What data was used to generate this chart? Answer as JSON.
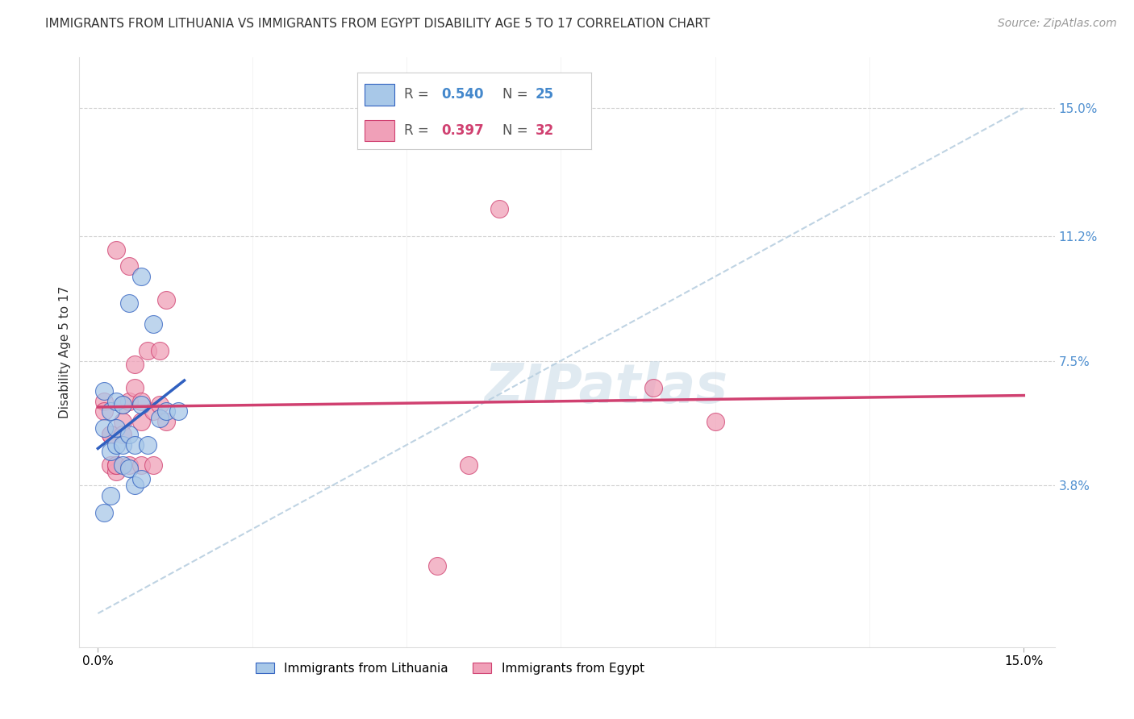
{
  "title": "IMMIGRANTS FROM LITHUANIA VS IMMIGRANTS FROM EGYPT DISABILITY AGE 5 TO 17 CORRELATION CHART",
  "source": "Source: ZipAtlas.com",
  "ylabel": "Disability Age 5 to 17",
  "ytick_positions": [
    0.038,
    0.075,
    0.112,
    0.15
  ],
  "ytick_labels": [
    "3.8%",
    "7.5%",
    "11.2%",
    "15.0%"
  ],
  "xtick_positions": [
    0.0,
    0.15
  ],
  "xtick_labels": [
    "0.0%",
    "15.0%"
  ],
  "xlim": [
    -0.003,
    0.155
  ],
  "ylim": [
    -0.01,
    0.165
  ],
  "legend_r1": "0.540",
  "legend_n1": "25",
  "legend_r2": "0.397",
  "legend_n2": "32",
  "color_lithuania": "#a8c8e8",
  "color_egypt": "#f0a0b8",
  "color_line_lithuania": "#3060c0",
  "color_line_egypt": "#d04070",
  "color_diagonal": "#b8cfe0",
  "background_color": "#ffffff",
  "grid_color": "#c8c8c8",
  "watermark_color": "#ccdde8",
  "lithuania_points": [
    [
      0.001,
      0.055
    ],
    [
      0.001,
      0.066
    ],
    [
      0.002,
      0.035
    ],
    [
      0.002,
      0.048
    ],
    [
      0.002,
      0.06
    ],
    [
      0.003,
      0.063
    ],
    [
      0.003,
      0.05
    ],
    [
      0.003,
      0.055
    ],
    [
      0.004,
      0.044
    ],
    [
      0.004,
      0.062
    ],
    [
      0.004,
      0.05
    ],
    [
      0.005,
      0.092
    ],
    [
      0.005,
      0.053
    ],
    [
      0.005,
      0.043
    ],
    [
      0.006,
      0.05
    ],
    [
      0.006,
      0.038
    ],
    [
      0.007,
      0.1
    ],
    [
      0.007,
      0.062
    ],
    [
      0.007,
      0.04
    ],
    [
      0.008,
      0.05
    ],
    [
      0.009,
      0.086
    ],
    [
      0.01,
      0.058
    ],
    [
      0.011,
      0.06
    ],
    [
      0.013,
      0.06
    ],
    [
      0.001,
      0.03
    ]
  ],
  "egypt_points": [
    [
      0.001,
      0.063
    ],
    [
      0.001,
      0.06
    ],
    [
      0.002,
      0.053
    ],
    [
      0.002,
      0.044
    ],
    [
      0.002,
      0.053
    ],
    [
      0.003,
      0.042
    ],
    [
      0.003,
      0.044
    ],
    [
      0.003,
      0.044
    ],
    [
      0.004,
      0.057
    ],
    [
      0.004,
      0.062
    ],
    [
      0.004,
      0.053
    ],
    [
      0.005,
      0.044
    ],
    [
      0.005,
      0.103
    ],
    [
      0.005,
      0.063
    ],
    [
      0.006,
      0.074
    ],
    [
      0.006,
      0.067
    ],
    [
      0.007,
      0.057
    ],
    [
      0.007,
      0.044
    ],
    [
      0.007,
      0.063
    ],
    [
      0.008,
      0.078
    ],
    [
      0.009,
      0.044
    ],
    [
      0.009,
      0.06
    ],
    [
      0.01,
      0.062
    ],
    [
      0.01,
      0.078
    ],
    [
      0.011,
      0.057
    ],
    [
      0.011,
      0.093
    ],
    [
      0.06,
      0.044
    ],
    [
      0.065,
      0.12
    ],
    [
      0.09,
      0.067
    ],
    [
      0.1,
      0.057
    ],
    [
      0.055,
      0.014
    ],
    [
      0.003,
      0.108
    ]
  ],
  "title_fontsize": 11,
  "axis_label_fontsize": 11,
  "tick_fontsize": 11,
  "legend_fontsize": 11,
  "source_fontsize": 10
}
